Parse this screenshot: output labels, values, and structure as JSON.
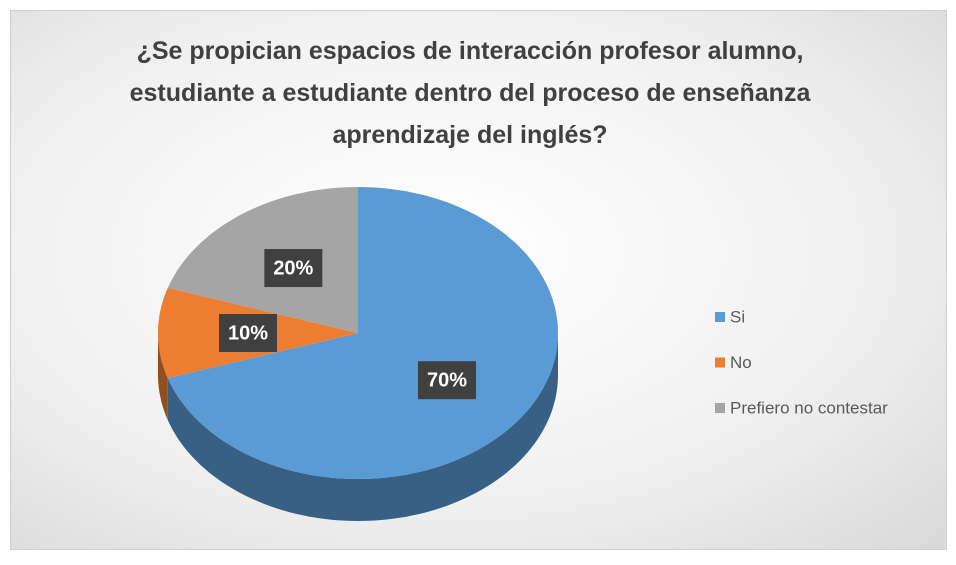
{
  "chart_data": {
    "type": "pie",
    "title": "¿Se propician espacios de interacción profesor alumno, estudiante a estudiante dentro del proceso de enseñanza aprendizaje del inglés?",
    "categories": [
      "Si",
      "No",
      "Prefiero no contestar"
    ],
    "values": [
      70,
      10,
      20
    ],
    "value_labels": [
      "70%",
      "10%",
      "20%"
    ],
    "colors": [
      "#5b9bd5",
      "#ed7d31",
      "#a5a5a5"
    ],
    "legend": "right"
  }
}
